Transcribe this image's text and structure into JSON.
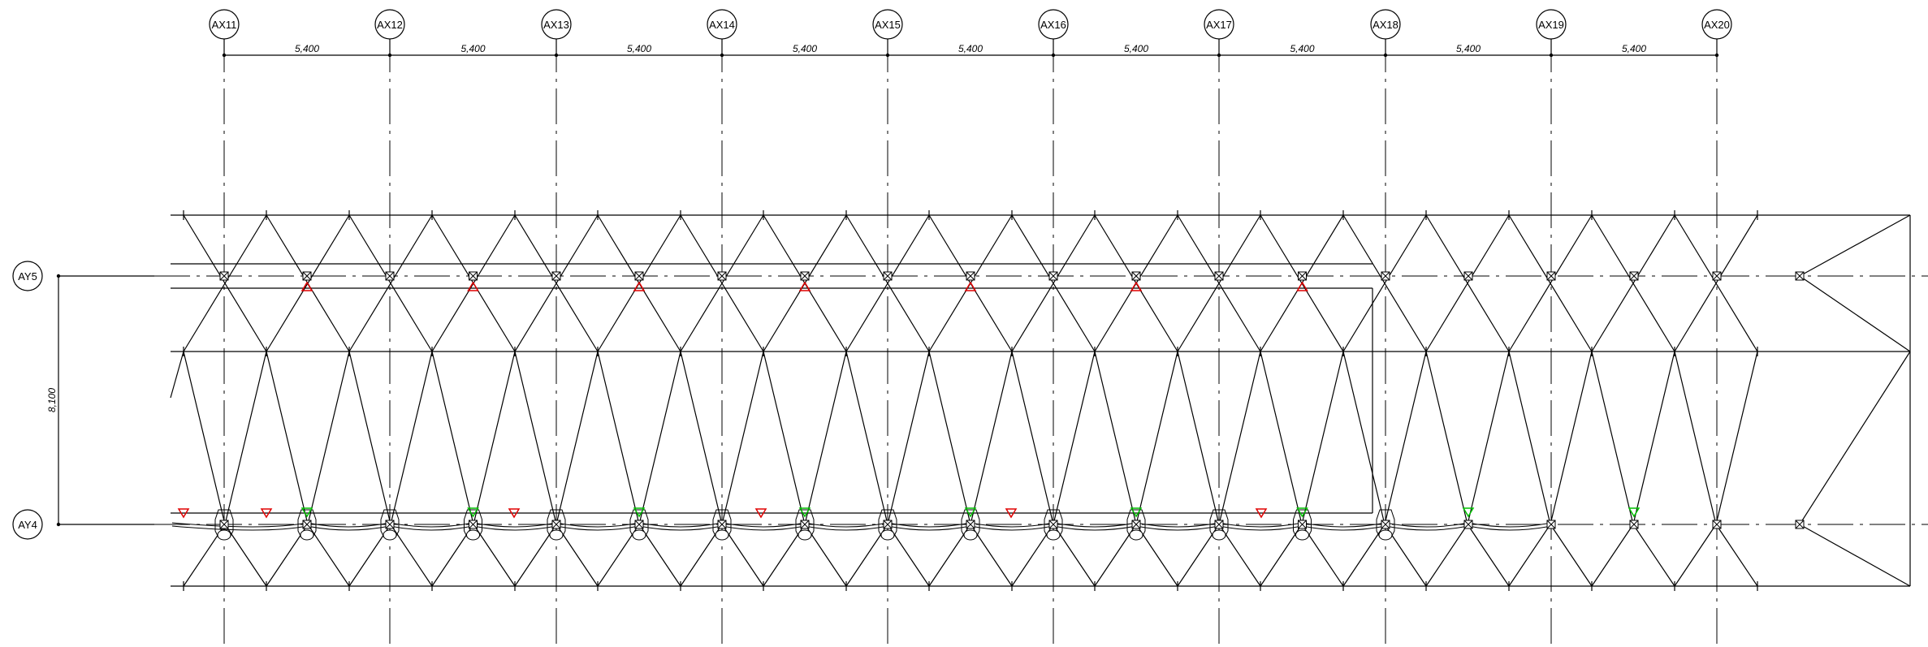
{
  "grid": {
    "x_axes": [
      "AX11",
      "AX12",
      "AX13",
      "AX14",
      "AX15",
      "AX16",
      "AX17",
      "AX18",
      "AX19",
      "AX20"
    ],
    "y_axes": [
      "AY5",
      "AY4"
    ],
    "x_spacing_label": "5,400",
    "y_spacing_label": "8,100"
  },
  "colors": {
    "line": "#000000",
    "red_marker": "#e00000",
    "green_marker": "#00c000"
  },
  "icons": {
    "column_node": "square-cross-icon",
    "red_marker": "red-triangle-icon",
    "green_marker": "green-triangle-icon"
  }
}
